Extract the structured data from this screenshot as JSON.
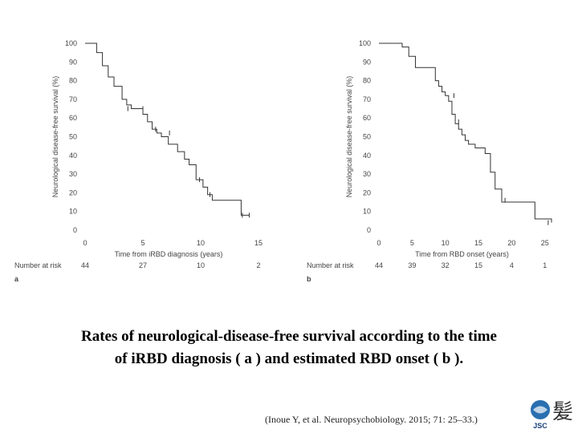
{
  "chart_data": [
    {
      "type": "line",
      "panel_label": "a",
      "ylabel": "Neurological disease-free survival (%)",
      "xlabel": "Time from iRBD diagnosis (years)",
      "xlim": [
        0,
        15
      ],
      "ylim": [
        0,
        100
      ],
      "xticks": [
        "0",
        "5",
        "10",
        "15"
      ],
      "yticks": [
        "0",
        "10",
        "20",
        "30",
        "40",
        "50",
        "60",
        "70",
        "80",
        "90",
        "100"
      ],
      "series": [
        {
          "name": "survival",
          "x": [
            0,
            1.0,
            1.5,
            2.0,
            2.5,
            3.2,
            3.6,
            4.0,
            5.0,
            5.4,
            5.8,
            6.2,
            6.6,
            7.2,
            8.0,
            8.6,
            9.0,
            9.6,
            10.2,
            10.6,
            11.0,
            13.5,
            14.2
          ],
          "y": [
            100,
            95,
            88,
            82,
            77,
            70,
            67,
            65,
            62,
            58,
            54,
            52,
            50,
            46,
            42,
            38,
            35,
            27,
            23,
            19,
            16,
            8,
            8
          ]
        }
      ],
      "censor_marks": [
        {
          "x": 3.7,
          "y": 65
        },
        {
          "x": 5.0,
          "y": 65
        },
        {
          "x": 6.1,
          "y": 54
        },
        {
          "x": 7.3,
          "y": 52
        },
        {
          "x": 9.9,
          "y": 27
        },
        {
          "x": 10.8,
          "y": 19
        },
        {
          "x": 13.6,
          "y": 8
        },
        {
          "x": 14.2,
          "y": 8
        }
      ],
      "number_at_risk": {
        "label": "Number at risk",
        "x": [
          0,
          5,
          10,
          15
        ],
        "values": [
          "44",
          "27",
          "10",
          "2"
        ]
      }
    },
    {
      "type": "line",
      "panel_label": "b",
      "ylabel": "Neurological disease-free survival (%)",
      "xlabel": "Time from RBD onset (years)",
      "xlim": [
        0,
        26
      ],
      "ylim": [
        0,
        100
      ],
      "xticks": [
        "0",
        "5",
        "10",
        "15",
        "20",
        "25"
      ],
      "yticks": [
        "0",
        "10",
        "20",
        "30",
        "40",
        "50",
        "60",
        "70",
        "80",
        "90",
        "100"
      ],
      "series": [
        {
          "name": "survival",
          "x": [
            0,
            3.5,
            4.5,
            5.5,
            8.5,
            9.0,
            9.5,
            10.0,
            10.5,
            11.0,
            11.5,
            12.0,
            12.5,
            13.0,
            13.5,
            14.5,
            16.0,
            16.8,
            17.5,
            18.5,
            22.5,
            23.5,
            26.0
          ],
          "y": [
            100,
            98,
            93,
            87,
            80,
            77,
            74,
            72,
            69,
            62,
            57,
            54,
            51,
            48,
            46,
            44,
            41,
            31,
            22,
            15,
            15,
            6,
            4
          ]
        }
      ],
      "censor_marks": [
        {
          "x": 11.3,
          "y": 72
        },
        {
          "x": 12.0,
          "y": 58
        },
        {
          "x": 19.0,
          "y": 16
        },
        {
          "x": 25.5,
          "y": 4
        }
      ],
      "number_at_risk": {
        "label": "Number at risk",
        "x": [
          0,
          5,
          10,
          15,
          20,
          25
        ],
        "values": [
          "44",
          "39",
          "32",
          "15",
          "4",
          "1"
        ]
      }
    }
  ],
  "caption": {
    "line1": "Rates of neurological-disease-free survival according to the time",
    "line2": "of iRBD diagnosis ( a ) and estimated RBD onset ( b )."
  },
  "citation": "(Inoue Y, et al. Neuropsychobiology. 2015; 71: 25–33.)",
  "logo": {
    "text": "JSC",
    "mark": "髪"
  },
  "colors": {
    "line": "#333333",
    "text": "#444444"
  }
}
